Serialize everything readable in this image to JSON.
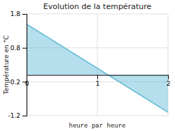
{
  "chart_data": {
    "type": "area",
    "title": "Evolution de la température",
    "x_label": "heure par heure",
    "y_label": "Température en °C",
    "x": [
      0,
      2
    ],
    "values": [
      1.5,
      -1.1
    ],
    "color": "#5bb8d4",
    "xlim": [
      0,
      2
    ],
    "ylim": [
      -1.2,
      1.8
    ],
    "xticks": [
      0,
      1,
      2
    ],
    "yticks": [
      -1.2,
      -0.2,
      0.8,
      1.8
    ],
    "grid": true
  }
}
